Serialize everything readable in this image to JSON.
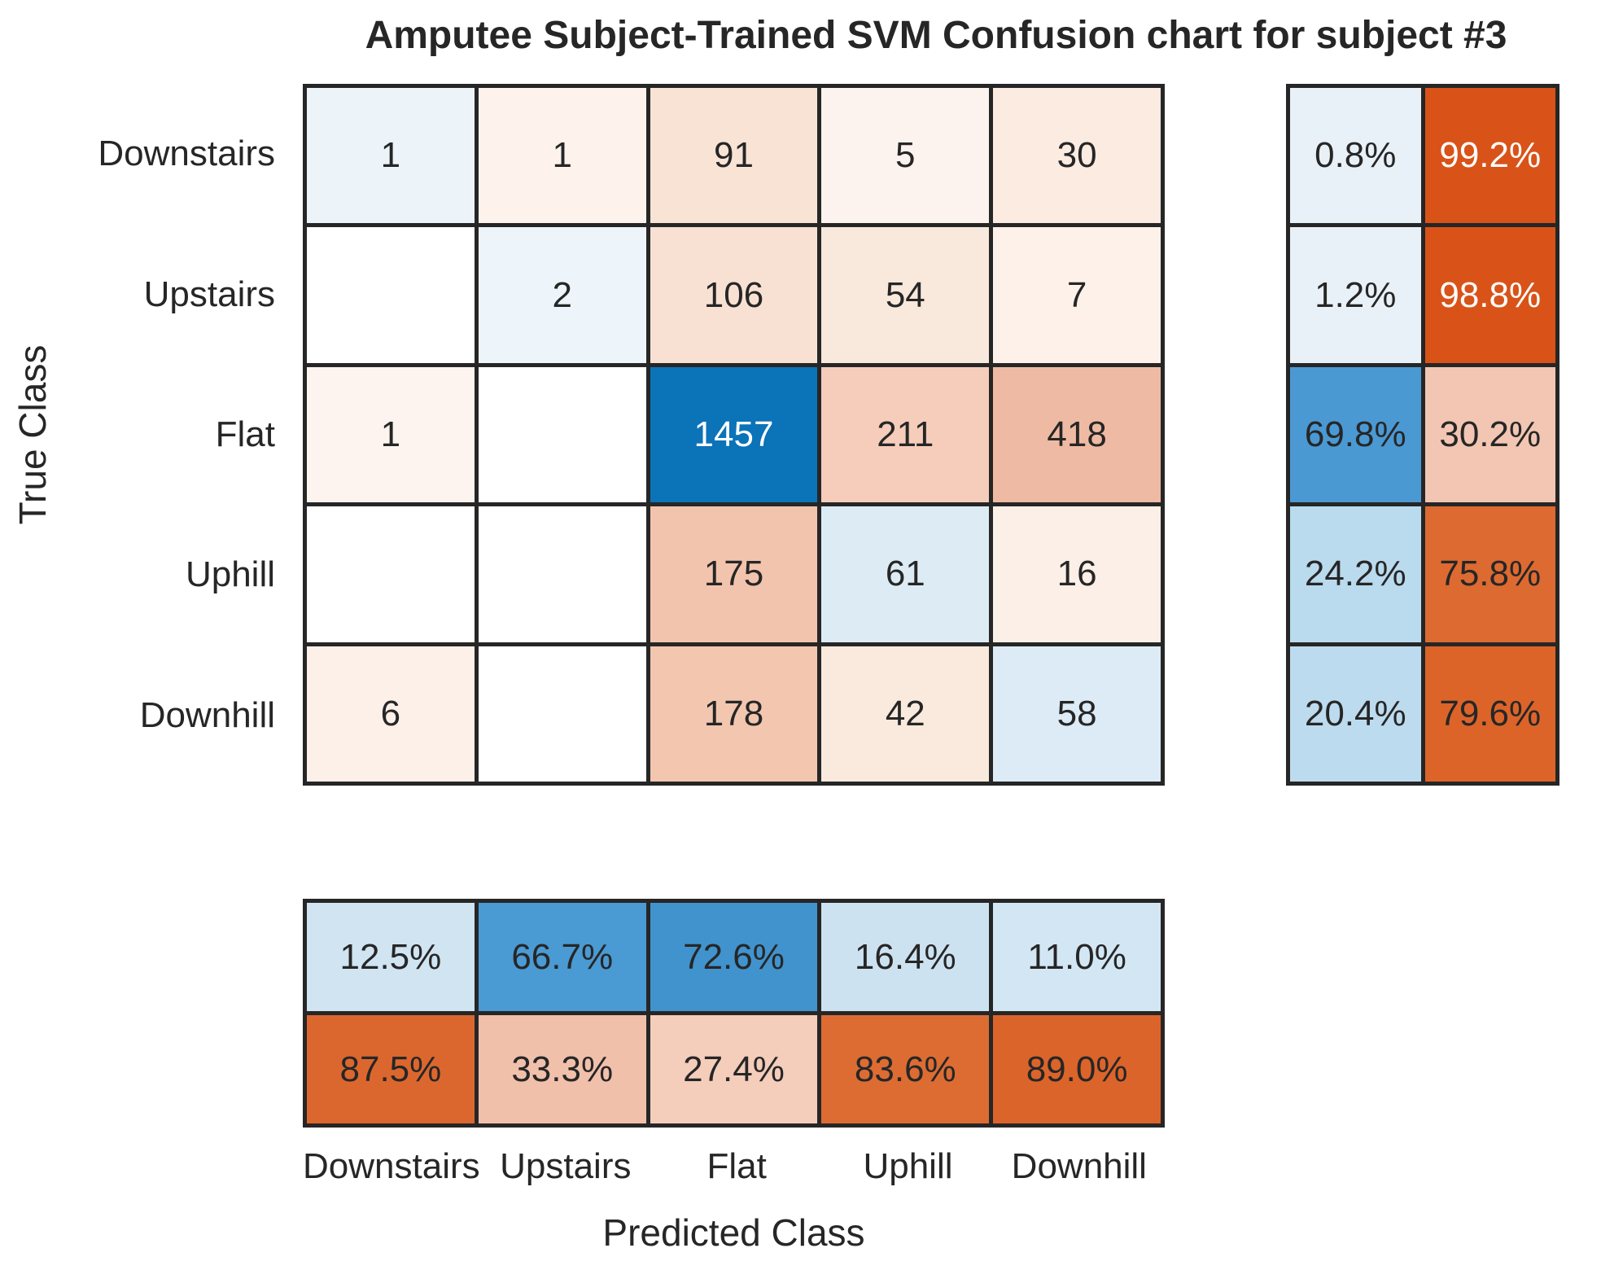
{
  "title": "Amputee Subject-Trained SVM Confusion chart for subject #3",
  "x_axis_label": "Predicted Class",
  "y_axis_label": "True Class",
  "classes": [
    "Downstairs",
    "Upstairs",
    "Flat",
    "Uphill",
    "Downhill"
  ],
  "chart_data": {
    "type": "heatmap",
    "subtype": "confusion-matrix",
    "title": "Amputee Subject-Trained SVM Confusion chart for subject #3",
    "xlabel": "Predicted Class",
    "ylabel": "True Class",
    "categories": [
      "Downstairs",
      "Upstairs",
      "Flat",
      "Uphill",
      "Downhill"
    ],
    "matrix_counts": [
      [
        1,
        1,
        91,
        5,
        30
      ],
      [
        0,
        2,
        106,
        54,
        7
      ],
      [
        1,
        0,
        1457,
        211,
        418
      ],
      [
        0,
        0,
        175,
        61,
        16
      ],
      [
        6,
        0,
        178,
        42,
        58
      ]
    ],
    "row_summary_pct": [
      [
        0.8,
        99.2
      ],
      [
        1.2,
        98.8
      ],
      [
        69.8,
        30.2
      ],
      [
        24.2,
        75.8
      ],
      [
        20.4,
        79.6
      ]
    ],
    "column_summary_pct": [
      [
        12.5,
        66.7,
        72.6,
        16.4,
        11.0
      ],
      [
        87.5,
        33.3,
        27.4,
        83.6,
        89.0
      ]
    ],
    "legend_position": "none",
    "grid": "on"
  },
  "colors": {
    "grid_line": "#262626",
    "diagonal_blue_strong": "#0b73b8",
    "off_diagonal_orange_strong": "#d95319",
    "background": "#ffffff",
    "text": "#262626"
  },
  "cells": {
    "matrix": [
      [
        {
          "t": "1",
          "bg": "#ecf4fa"
        },
        {
          "t": "1",
          "bg": "#fdf2ec"
        },
        {
          "t": "91",
          "bg": "#f8e3d5"
        },
        {
          "t": "5",
          "bg": "#fdf3ee"
        },
        {
          "t": "30",
          "bg": "#fbebe1"
        }
      ],
      [
        {
          "t": "",
          "bg": "#ffffff"
        },
        {
          "t": "2",
          "bg": "#edf5fa"
        },
        {
          "t": "106",
          "bg": "#f8e1d3"
        },
        {
          "t": "54",
          "bg": "#f9e8dc"
        },
        {
          "t": "7",
          "bg": "#fdf1ea"
        }
      ],
      [
        {
          "t": "1",
          "bg": "#fef4ef"
        },
        {
          "t": "",
          "bg": "#ffffff"
        },
        {
          "t": "1457",
          "bg": "#0b73b8",
          "fg": "#ffffff"
        },
        {
          "t": "211",
          "bg": "#f5cdba"
        },
        {
          "t": "418",
          "bg": "#efbaa3"
        }
      ],
      [
        {
          "t": "",
          "bg": "#ffffff"
        },
        {
          "t": "",
          "bg": "#ffffff"
        },
        {
          "t": "175",
          "bg": "#f2c4ae"
        },
        {
          "t": "61",
          "bg": "#ddebf5"
        },
        {
          "t": "16",
          "bg": "#fcefe7"
        }
      ],
      [
        {
          "t": "6",
          "bg": "#fdf0e9"
        },
        {
          "t": "",
          "bg": "#ffffff"
        },
        {
          "t": "178",
          "bg": "#f3c6b0"
        },
        {
          "t": "42",
          "bg": "#faeade"
        },
        {
          "t": "58",
          "bg": "#dcebf6"
        }
      ]
    ],
    "row_summary": [
      [
        {
          "t": "0.8%",
          "bg": "#e9f1f8"
        },
        {
          "t": "99.2%",
          "bg": "#d95319",
          "fg": "#ffffff"
        }
      ],
      [
        {
          "t": "1.2%",
          "bg": "#e9f1f8"
        },
        {
          "t": "98.8%",
          "bg": "#d95319",
          "fg": "#ffffff"
        }
      ],
      [
        {
          "t": "69.8%",
          "bg": "#4a99d3"
        },
        {
          "t": "30.2%",
          "bg": "#f2c6b2"
        }
      ],
      [
        {
          "t": "24.2%",
          "bg": "#badaee"
        },
        {
          "t": "75.8%",
          "bg": "#dd6a31"
        }
      ],
      [
        {
          "t": "20.4%",
          "bg": "#bddbee"
        },
        {
          "t": "79.6%",
          "bg": "#dc6429"
        }
      ]
    ],
    "column_summary": [
      [
        {
          "t": "12.5%",
          "bg": "#d0e4f2"
        },
        {
          "t": "66.7%",
          "bg": "#4a9ad3"
        },
        {
          "t": "72.6%",
          "bg": "#4193cd"
        },
        {
          "t": "16.4%",
          "bg": "#cde2f1"
        },
        {
          "t": "11.0%",
          "bg": "#d3e6f3"
        }
      ],
      [
        {
          "t": "87.5%",
          "bg": "#dc672e"
        },
        {
          "t": "33.3%",
          "bg": "#f1c0ab"
        },
        {
          "t": "27.4%",
          "bg": "#f4cdbb"
        },
        {
          "t": "83.6%",
          "bg": "#dd6c33"
        },
        {
          "t": "89.0%",
          "bg": "#db642a"
        }
      ]
    ]
  }
}
